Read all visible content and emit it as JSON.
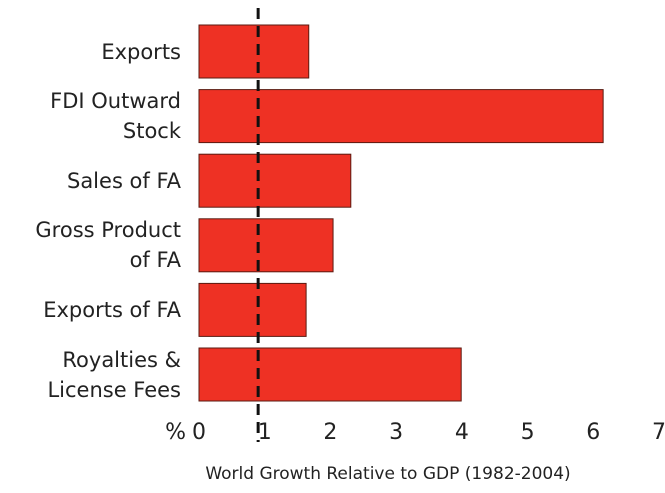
{
  "chart_data": {
    "type": "barh",
    "categories": [
      "Exports",
      "FDI Outward\nStock",
      "Sales of FA",
      "Gross Product\nof FA",
      "Exports of FA",
      "Royalties &\nLicense Fees"
    ],
    "values": [
      1.67,
      6.15,
      2.31,
      2.04,
      1.63,
      3.99
    ],
    "color": "#ee3124",
    "xlim": [
      0,
      7
    ],
    "xticks": [
      0,
      1,
      2,
      3,
      4,
      5,
      6,
      7
    ],
    "xunit": "%",
    "xlabel": "World Growth Relative to GDP (1982-2004)",
    "reference_line": 0.9,
    "grid": false
  }
}
